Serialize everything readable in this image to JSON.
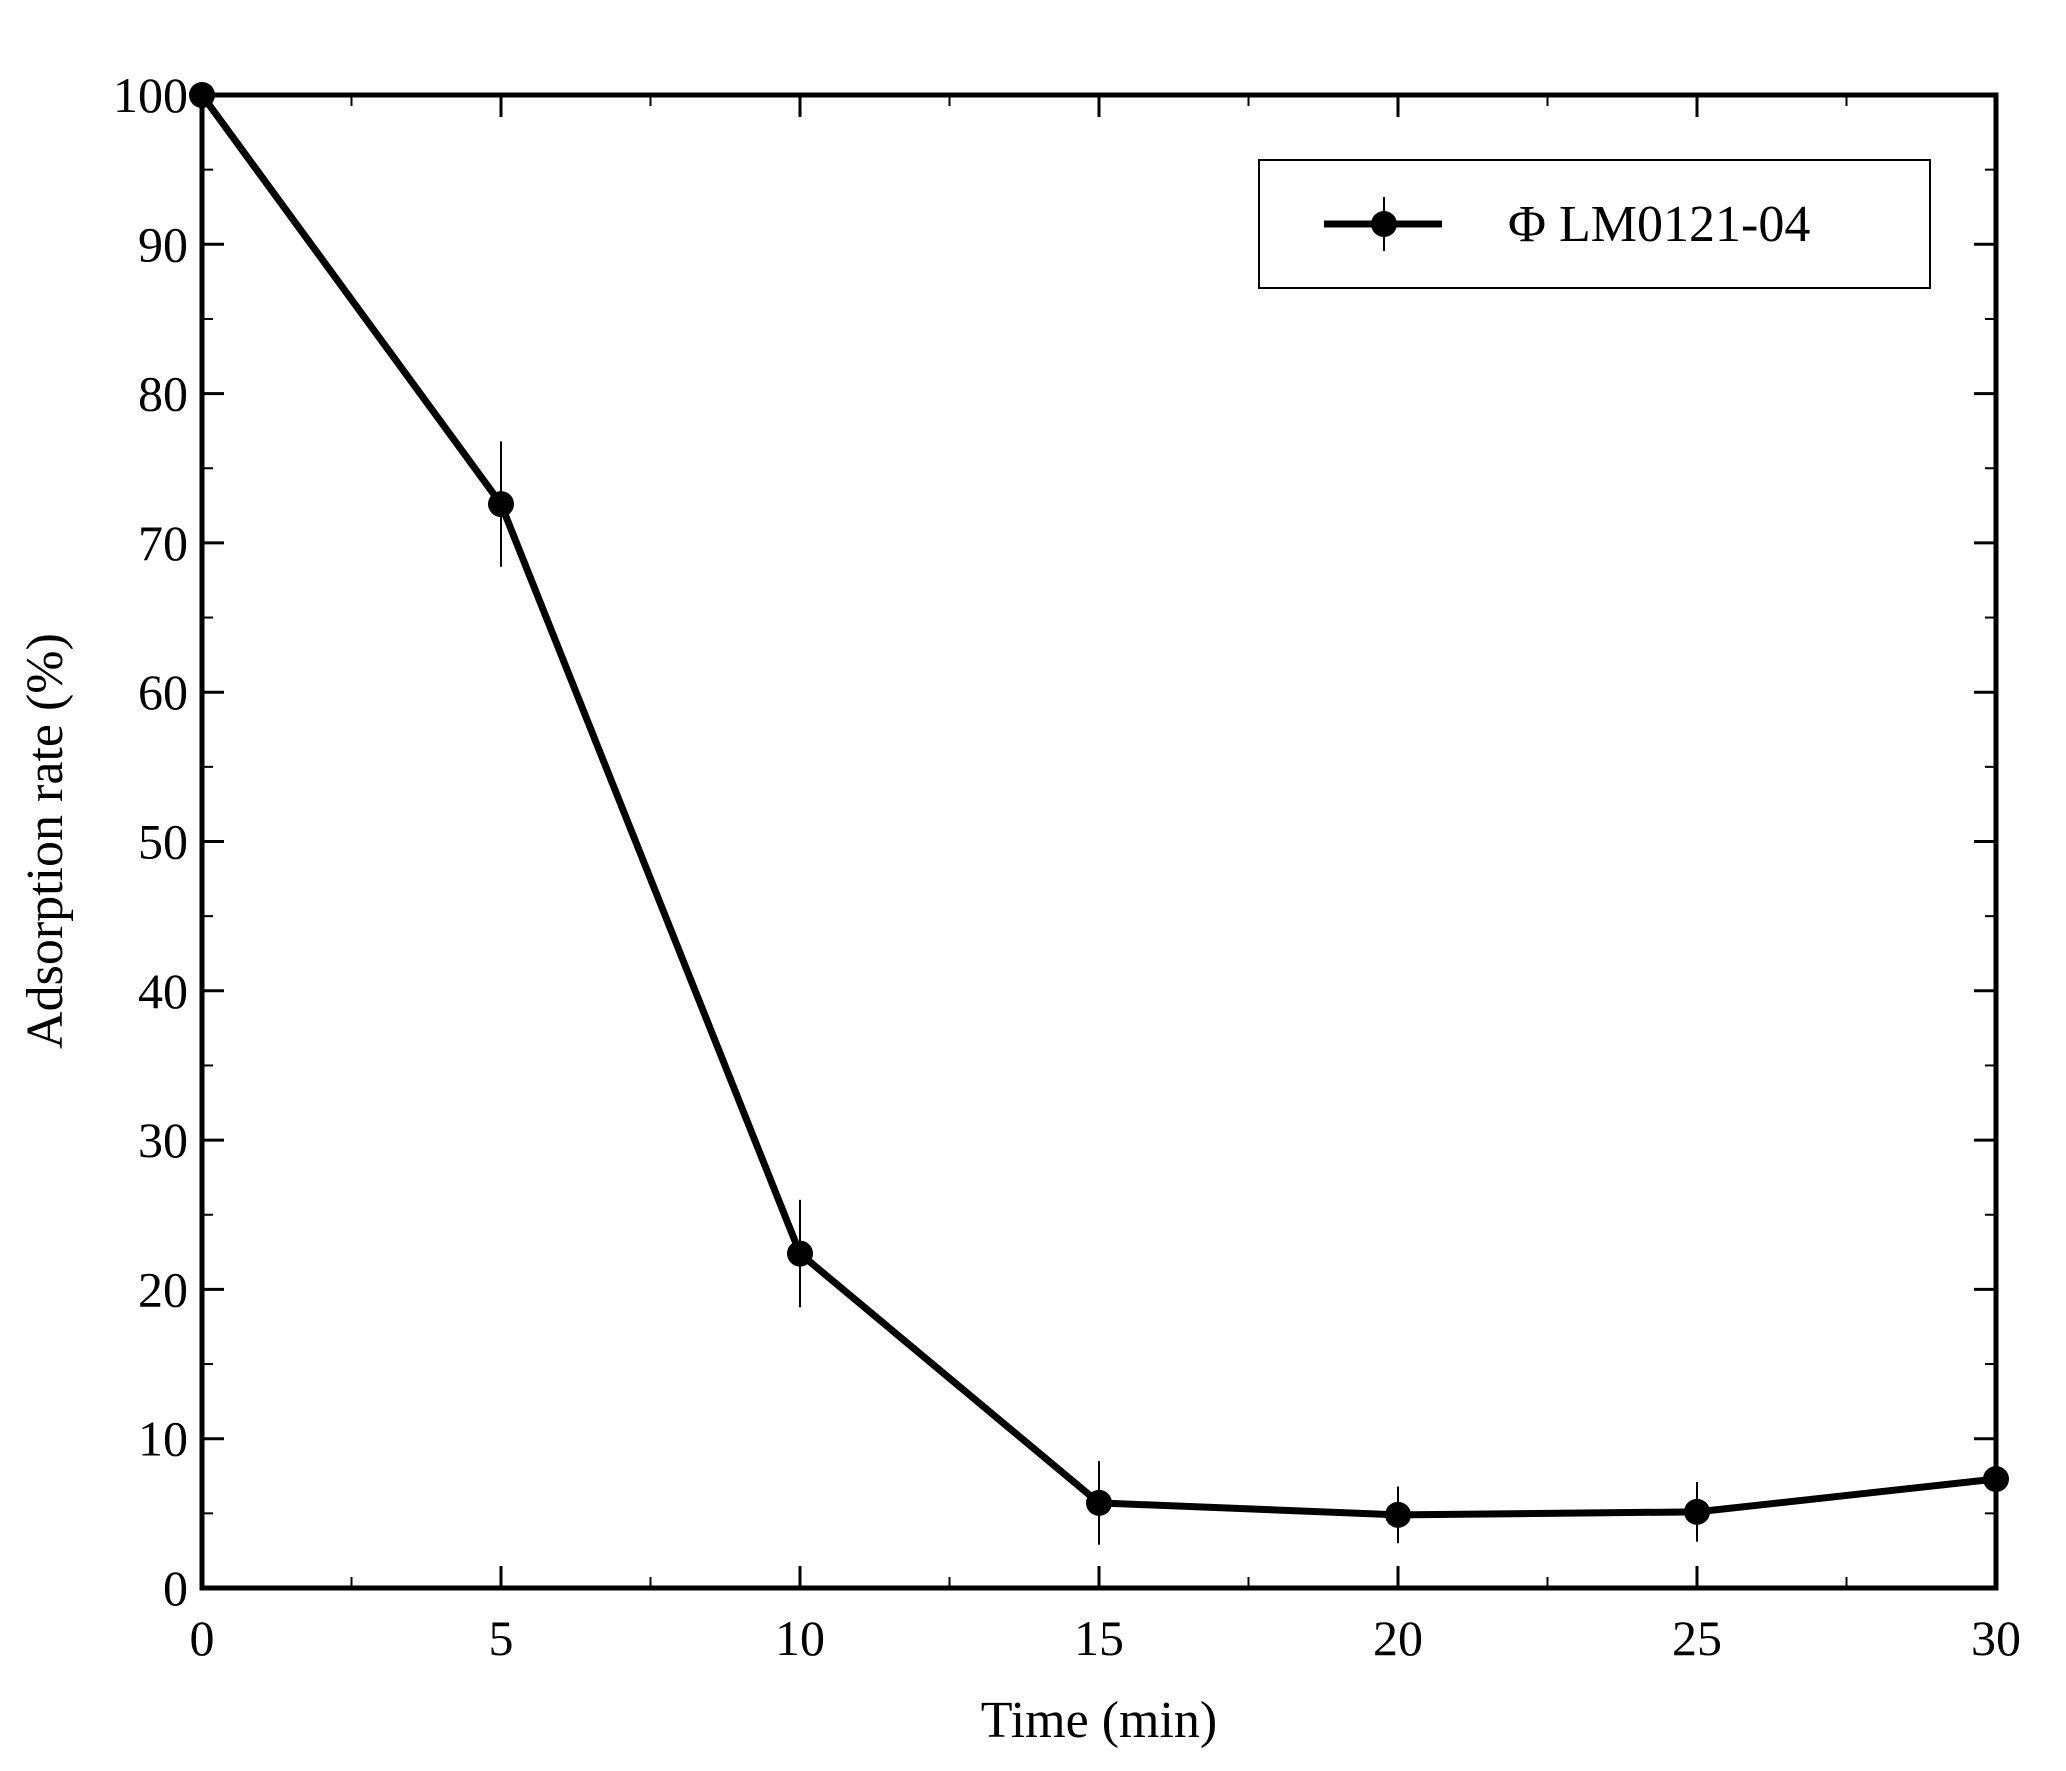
{
  "chart_data": {
    "type": "line",
    "xlabel": "Time (min)",
    "ylabel": "Adsorption rate (%)",
    "xlim": [
      0,
      30
    ],
    "ylim": [
      0,
      100
    ],
    "xticks": [
      0,
      5,
      10,
      15,
      20,
      25,
      30
    ],
    "yticks": [
      0,
      10,
      20,
      30,
      40,
      50,
      60,
      70,
      80,
      90,
      100
    ],
    "x_minor_step": 2.5,
    "y_minor_step": 5,
    "grid": false,
    "legend_position": "top-right",
    "series": [
      {
        "name": "Φ LM0121-04",
        "color": "#000000",
        "marker": "filled-circle",
        "x": [
          0,
          5,
          10,
          15,
          20,
          25,
          30
        ],
        "y": [
          100,
          72.6,
          22.4,
          5.7,
          4.9,
          5.1,
          7.3
        ],
        "error": [
          0,
          4.2,
          3.6,
          2.8,
          1.9,
          2.0,
          1.2
        ]
      }
    ]
  }
}
